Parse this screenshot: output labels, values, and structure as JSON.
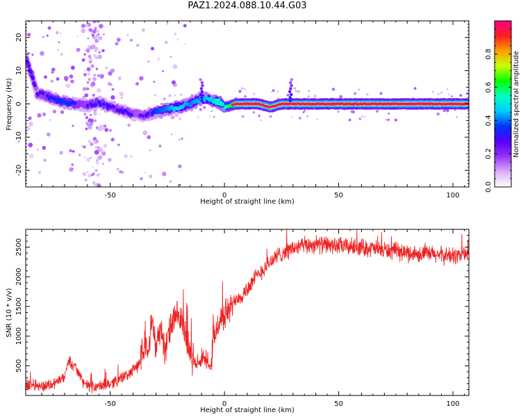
{
  "title": "PAZ1.2024.088.10.44.G03",
  "chart_data": [
    {
      "type": "heatmap",
      "xlabel": "Height of straight line (km)",
      "ylabel": "Frequency (Hz)",
      "xlim": [
        -87,
        107
      ],
      "ylim": [
        -25,
        25
      ],
      "xticks": [
        -50,
        0,
        50,
        100
      ],
      "yticks": [
        -20,
        -10,
        0,
        10,
        20
      ],
      "colorbar": {
        "label": "Normalized spectral amplitude",
        "range": [
          0,
          1
        ],
        "ticks": [
          0.0,
          0.2,
          0.4,
          0.6,
          0.8
        ],
        "tick_labels": [
          "0.0",
          "0.2",
          "0.4",
          "0.6",
          "0.8"
        ],
        "colormap": [
          "#ffffff",
          "#d8b0f8",
          "#9a33ff",
          "#5500ff",
          "#0033ff",
          "#00c8ff",
          "#00ffc0",
          "#00ff00",
          "#c8ff00",
          "#ffa000",
          "#ff2020",
          "#ff0080"
        ]
      },
      "ridge": {
        "x": [
          -87,
          -84,
          -82,
          -80,
          -75,
          -70,
          -65,
          -60,
          -55,
          -50,
          -45,
          -40,
          -36,
          -30,
          -25,
          -20,
          -15,
          -10,
          -7,
          -5,
          -2,
          0,
          5,
          10,
          15,
          20,
          25,
          30,
          40,
          50,
          60,
          70,
          80,
          90,
          100,
          107
        ],
        "frequency": [
          14,
          8,
          3,
          3,
          1.5,
          0.5,
          0,
          -0.5,
          0.5,
          -1,
          -2,
          -3,
          -3.5,
          -2.5,
          -1.5,
          -1,
          0,
          1.5,
          1.5,
          1,
          0.5,
          -1,
          0,
          0,
          0,
          -1,
          0,
          0,
          0,
          0,
          0,
          0,
          0,
          0,
          0,
          0
        ],
        "amplitude": [
          0.35,
          0.35,
          0.3,
          0.35,
          0.4,
          0.45,
          0.4,
          0.35,
          0.4,
          0.35,
          0.35,
          0.35,
          0.3,
          0.45,
          0.5,
          0.6,
          0.5,
          0.55,
          0.55,
          0.6,
          0.65,
          0.6,
          0.9,
          0.95,
          0.95,
          0.9,
          0.95,
          0.95,
          0.95,
          0.95,
          0.95,
          0.95,
          0.95,
          0.95,
          0.95,
          0.95
        ]
      }
    },
    {
      "type": "line",
      "xlabel": "Height of straight line (km)",
      "ylabel": "SNR (10 * v/v)",
      "xlim": [
        -87,
        107
      ],
      "ylim": [
        0,
        2800
      ],
      "xticks": [
        -50,
        0,
        50,
        100
      ],
      "yticks": [
        500,
        1000,
        1500,
        2000,
        2500
      ],
      "color": "#ee2222",
      "x": [
        -87,
        -85,
        -80,
        -75,
        -70,
        -68,
        -65,
        -62,
        -60,
        -55,
        -50,
        -45,
        -42,
        -38,
        -35,
        -33,
        -32,
        -30,
        -28,
        -26,
        -24,
        -22,
        -20,
        -18,
        -15,
        -12,
        -10,
        -8,
        -6,
        -5,
        -3,
        0,
        3,
        5,
        8,
        10,
        15,
        20,
        25,
        30,
        35,
        40,
        50,
        60,
        70,
        80,
        90,
        100,
        107
      ],
      "snr": [
        150,
        200,
        150,
        200,
        300,
        600,
        450,
        250,
        150,
        150,
        200,
        300,
        350,
        500,
        800,
        900,
        1300,
        800,
        1200,
        700,
        1100,
        1300,
        1300,
        1200,
        700,
        500,
        650,
        550,
        450,
        900,
        1200,
        1350,
        1500,
        1650,
        1700,
        1800,
        2050,
        2250,
        2400,
        2480,
        2520,
        2550,
        2520,
        2500,
        2450,
        2400,
        2380,
        2350,
        2400
      ]
    }
  ]
}
